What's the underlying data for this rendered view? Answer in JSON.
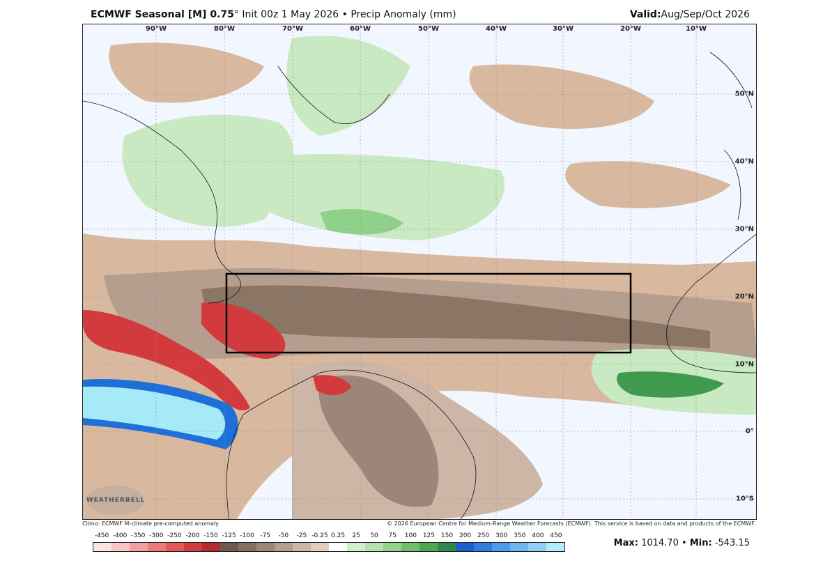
{
  "header": {
    "model": "ECMWF Seasonal [M] 0.75",
    "degree": "°",
    "init": "Init 00z 1 May 2026",
    "bullet": "•",
    "field": "Precip Anomaly (mm)",
    "valid_label": "Valid:",
    "valid_value": "Aug/Sep/Oct 2026"
  },
  "map": {
    "lon_labels": [
      "90°W",
      "80°W",
      "70°W",
      "60°W",
      "50°W",
      "40°W",
      "30°W",
      "20°W",
      "10°W"
    ],
    "lat_labels": [
      "50°N",
      "40°N",
      "30°N",
      "20°N",
      "10°N",
      "0°",
      "10°S"
    ],
    "logo_text": "WEATHERBELL",
    "colors": {
      "ocean_bg": "#f2f6ff",
      "brown_light": "#d9b8a0",
      "brown_mid": "#b79a86",
      "brown_dark": "#8b7565",
      "green_light": "#c9e9c2",
      "green_mid": "#8fd08a",
      "green_dark": "#3f9a4d",
      "red": "#d23a3e",
      "blue": "#1e6fd8",
      "cyan": "#a6e9f8",
      "box": "#000000"
    }
  },
  "footer": {
    "left": "Climo: ECMWF M-climate pre-computed anomaly",
    "right": "© 2026 European Centre for Medium-Range Weather Forecasts (ECMWF). This service is based on data and products of the ECMWF."
  },
  "colorbar": {
    "ticks": [
      "-450",
      "-400",
      "-350",
      "-300",
      "-250",
      "-200",
      "-150",
      "-125",
      "-100",
      "-75",
      "-50",
      "-25",
      "-0.25",
      "0.25",
      "25",
      "50",
      "75",
      "100",
      "125",
      "150",
      "200",
      "250",
      "300",
      "350",
      "400",
      "450"
    ],
    "colors": [
      "#fde3e3",
      "#f9c4c4",
      "#f3a0a0",
      "#ec7c7c",
      "#e25a5a",
      "#d23a3e",
      "#b52a2e",
      "#6e5a4e",
      "#857063",
      "#9d8677",
      "#b59e8e",
      "#cdb6a5",
      "#e2cdbd",
      "#ffffff",
      "#d3eece",
      "#b6e2ad",
      "#94d18b",
      "#6fbf69",
      "#4ca853",
      "#33874a",
      "#1e5fd0",
      "#2f7be0",
      "#4b9aec",
      "#6db6f2",
      "#8ed0f6",
      "#b5ecfb"
    ]
  },
  "stats": {
    "max_label": "Max:",
    "max_value": "1014.70",
    "sep": "•",
    "min_label": "Min:",
    "min_value": "-543.15"
  }
}
